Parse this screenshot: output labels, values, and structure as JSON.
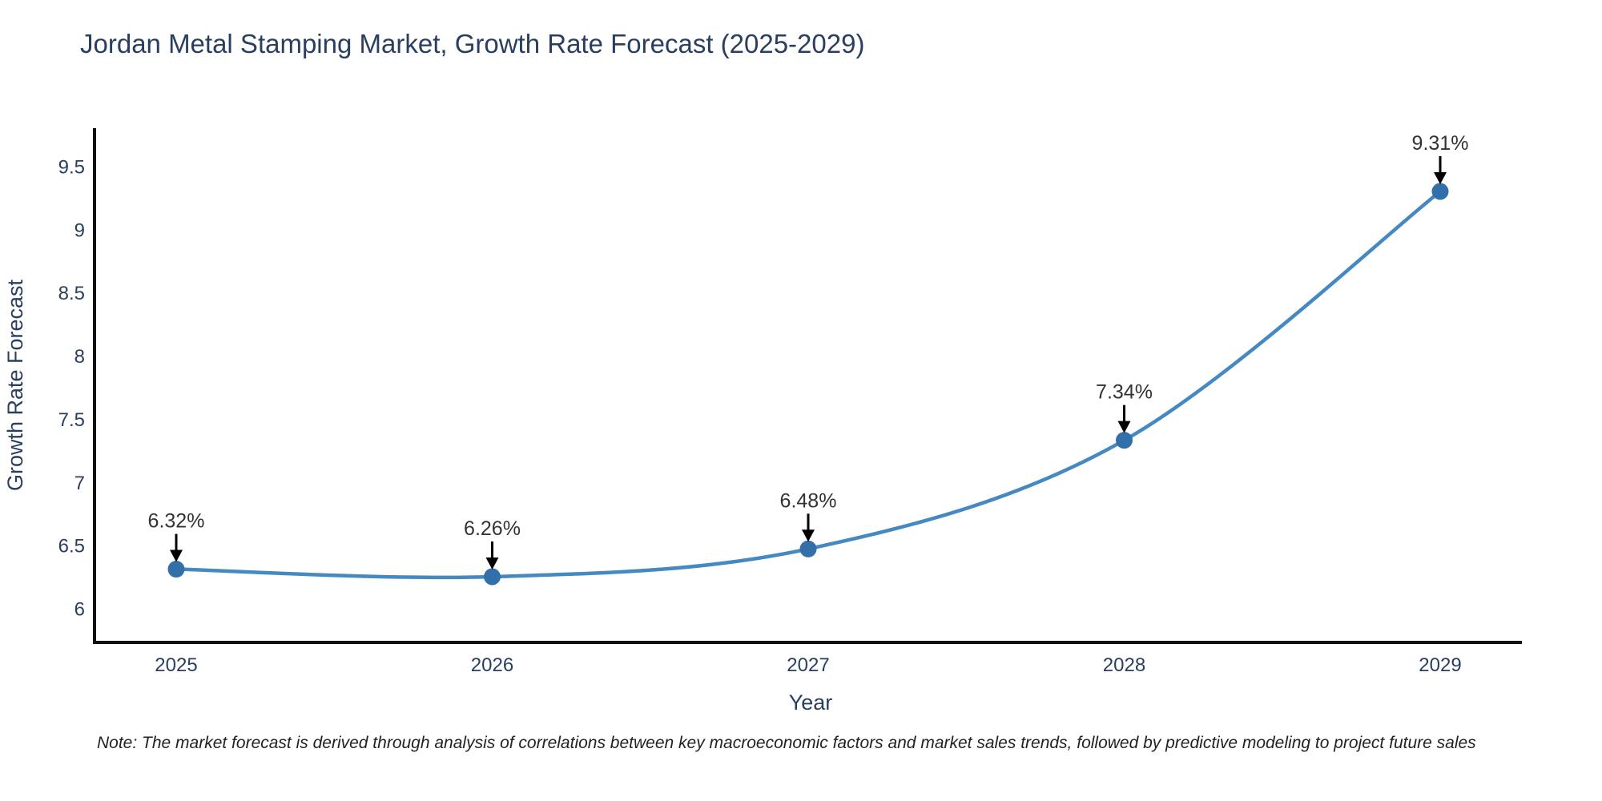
{
  "title": "Jordan Metal Stamping Market, Growth Rate Forecast (2025-2029)",
  "note": "Note: The market forecast is derived through analysis of correlations between key macroeconomic factors and market sales trends, followed by predictive modeling to project future sales",
  "chart_data": {
    "type": "line",
    "curve": "spline",
    "x": [
      2025,
      2026,
      2027,
      2028,
      2029
    ],
    "series": [
      {
        "name": "Growth Rate Forecast",
        "values": [
          6.32,
          6.26,
          6.48,
          7.34,
          9.31
        ]
      }
    ],
    "point_labels": [
      "6.32%",
      "6.26%",
      "6.48%",
      "7.34%",
      "9.31%"
    ],
    "title": "Jordan Metal Stamping Market, Growth Rate Forecast (2025-2029)",
    "xlabel": "Year",
    "ylabel": "Growth Rate Forecast",
    "xticks": [
      "2025",
      "2026",
      "2027",
      "2028",
      "2029"
    ],
    "yticks": [
      6,
      6.5,
      7,
      7.5,
      8,
      8.5,
      9,
      9.5
    ],
    "ylim": [
      5.74,
      9.81
    ],
    "grid": false,
    "legend": "none",
    "line_color": "#4489c2",
    "marker_color": "#336fa8",
    "axis_line_color": "#111111",
    "axis_text_color": "#2a3f5f",
    "annotation_text_color": "#333333",
    "annotation_arrow_color": "#000000"
  }
}
